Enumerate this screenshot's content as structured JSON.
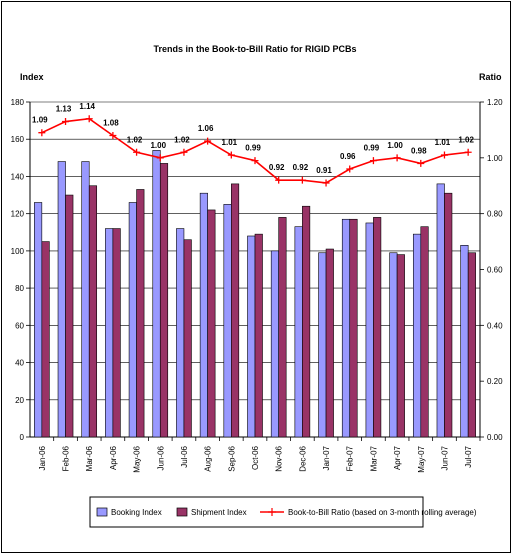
{
  "chart_data": {
    "type": "bar+line",
    "title": "Trends in the Book-to-Bill Ratio for RIGID PCBs",
    "left_axis_label": "Index",
    "right_axis_label": "Ratio",
    "ylim_left": [
      0,
      180
    ],
    "ylim_right": [
      0,
      1.2
    ],
    "left_ticks": [
      "0",
      "20",
      "40",
      "60",
      "80",
      "100",
      "120",
      "140",
      "160",
      "180"
    ],
    "right_ticks": [
      "0.00",
      "0.20",
      "0.40",
      "0.60",
      "0.80",
      "1.00",
      "1.20"
    ],
    "grid": "horizontal",
    "legend_position": "bottom",
    "categories": [
      "Jan-06",
      "Feb-06",
      "Mar-06",
      "Apr-06",
      "May-06",
      "Jun-06",
      "Jul-06",
      "Aug-06",
      "Sep-06",
      "Oct-06",
      "Nov-06",
      "Dec-06",
      "Jan-07",
      "Feb-07",
      "Mar-07",
      "Apr-07",
      "May-07",
      "Jun-07",
      "Jul-07"
    ],
    "series": [
      {
        "name": "Booking Index",
        "type": "bar",
        "axis": "left",
        "color": "#9999ff",
        "values": [
          126,
          148,
          148,
          112,
          126,
          154,
          112,
          131,
          125,
          108,
          100,
          113,
          99,
          117,
          115,
          99,
          109,
          136,
          103
        ]
      },
      {
        "name": "Shipment Index",
        "type": "bar",
        "axis": "left",
        "color": "#993366",
        "values": [
          105,
          130,
          135,
          112,
          133,
          147,
          106,
          122,
          136,
          109,
          118,
          124,
          101,
          117,
          118,
          98,
          113,
          131,
          99
        ]
      },
      {
        "name": "Book-to-Bill Ratio (based on 3-month rolling average)",
        "type": "line",
        "axis": "right",
        "color": "#ff0000",
        "values": [
          1.09,
          1.13,
          1.14,
          1.08,
          1.02,
          1.0,
          1.02,
          1.06,
          1.01,
          0.99,
          0.92,
          0.92,
          0.91,
          0.96,
          0.99,
          1.0,
          0.98,
          1.01,
          1.02
        ],
        "labels": [
          "1.09",
          "1.13",
          "1.14",
          "1.08",
          "1.02",
          "1.00",
          "1.02",
          "1.06",
          "1.01",
          "0.99",
          "0.92",
          "0.92",
          "0.91",
          "0.96",
          "0.99",
          "1.00",
          "0.98",
          "1.01",
          "1.02"
        ]
      }
    ]
  }
}
